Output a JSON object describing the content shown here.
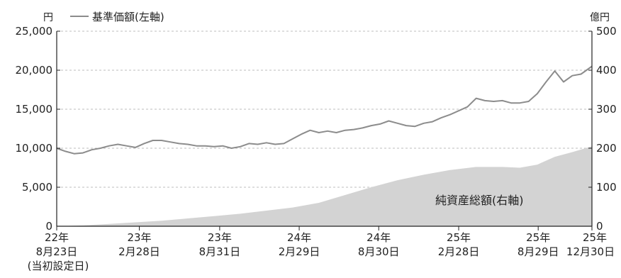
{
  "chart_data": {
    "type": "line",
    "x_labels": [
      {
        "year": "22年",
        "date": "8月23日",
        "note": "(当初設定日)"
      },
      {
        "year": "23年",
        "date": "2月28日"
      },
      {
        "year": "23年",
        "date": "8月31日"
      },
      {
        "year": "24年",
        "date": "2月29日"
      },
      {
        "year": "24年",
        "date": "8月30日"
      },
      {
        "year": "25年",
        "date": "2月28日"
      },
      {
        "year": "25年",
        "date": "8月29日"
      },
      {
        "year": "25年",
        "date": "12月30日"
      }
    ],
    "x_label_days": [
      0,
      189,
      373,
      555,
      737,
      920,
      1102,
      1225
    ],
    "x_range_days": [
      0,
      1225
    ],
    "y_left": {
      "unit": "円",
      "range": [
        0,
        25000
      ],
      "ticks": [
        "0",
        "5,000",
        "10,000",
        "15,000",
        "20,000",
        "25,000"
      ],
      "tick_values": [
        0,
        5000,
        10000,
        15000,
        20000,
        25000
      ]
    },
    "y_right": {
      "unit": "億円",
      "range": [
        0,
        500
      ],
      "ticks": [
        "0",
        "100",
        "200",
        "300",
        "400",
        "500"
      ],
      "tick_values": [
        0,
        100,
        200,
        300,
        400,
        500
      ]
    },
    "legend": "基準価額(左軸)",
    "area_label": "純資産総額(右軸)",
    "grid": "horizontal-dashed",
    "series": [
      {
        "name": "基準価額(左軸)",
        "axis": "left",
        "color": "#8c8c8c",
        "x_days": [
          0,
          20,
          40,
          60,
          80,
          100,
          120,
          140,
          160,
          180,
          200,
          220,
          240,
          260,
          280,
          300,
          320,
          340,
          360,
          380,
          400,
          420,
          440,
          460,
          480,
          500,
          520,
          540,
          560,
          580,
          600,
          620,
          640,
          660,
          680,
          700,
          720,
          740,
          760,
          780,
          800,
          820,
          840,
          860,
          880,
          900,
          920,
          940,
          960,
          980,
          1000,
          1020,
          1040,
          1060,
          1080,
          1100,
          1120,
          1140,
          1160,
          1180,
          1200,
          1225
        ],
        "values": [
          10000,
          9600,
          9300,
          9400,
          9800,
          10000,
          10300,
          10500,
          10300,
          10100,
          10600,
          11000,
          11000,
          10800,
          10600,
          10500,
          10300,
          10300,
          10200,
          10300,
          10000,
          10200,
          10600,
          10500,
          10700,
          10500,
          10600,
          11200,
          11800,
          12300,
          12000,
          12200,
          12000,
          12300,
          12400,
          12600,
          12900,
          13100,
          13500,
          13200,
          12900,
          12800,
          13200,
          13400,
          13900,
          14300,
          14800,
          15300,
          16400,
          16100,
          16000,
          16100,
          15800,
          15800,
          16000,
          17000,
          18500,
          19900,
          18500,
          19300,
          19500,
          20500
        ]
      },
      {
        "name": "純資産総額(右軸)",
        "axis": "right",
        "color": "#d3d3d3",
        "x_days": [
          0,
          60,
          120,
          180,
          240,
          300,
          360,
          420,
          480,
          540,
          600,
          660,
          720,
          780,
          840,
          900,
          960,
          1020,
          1060,
          1100,
          1140,
          1180,
          1225
        ],
        "values": [
          0,
          2,
          6,
          10,
          14,
          20,
          26,
          32,
          40,
          48,
          60,
          80,
          100,
          118,
          132,
          144,
          152,
          152,
          150,
          158,
          178,
          190,
          205
        ]
      }
    ]
  }
}
